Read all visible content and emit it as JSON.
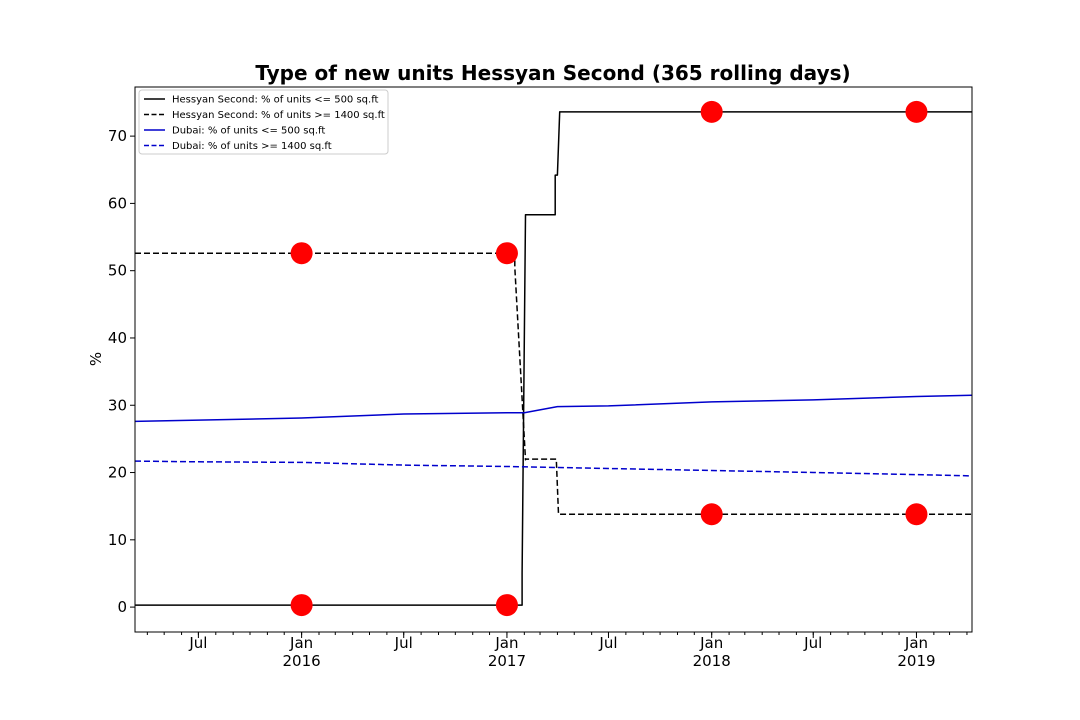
{
  "chart_data": {
    "type": "line",
    "title": "Type of new units Hessyan Second (365 rolling days)",
    "xlabel": "",
    "ylabel": "%",
    "xlim": [
      "2015-03-10",
      "2019-04-10"
    ],
    "ylim": [
      -3.7,
      77.3
    ],
    "grid": false,
    "legend_position": "top-left",
    "y_ticks": [
      0,
      10,
      20,
      30,
      40,
      50,
      60,
      70
    ],
    "x_ticks": [
      {
        "date": "2015-07-01",
        "label": "Jul",
        "sublabel": ""
      },
      {
        "date": "2016-01-01",
        "label": "Jan",
        "sublabel": "2016"
      },
      {
        "date": "2016-07-01",
        "label": "Jul",
        "sublabel": ""
      },
      {
        "date": "2017-01-01",
        "label": "Jan",
        "sublabel": "2017"
      },
      {
        "date": "2017-07-01",
        "label": "Jul",
        "sublabel": ""
      },
      {
        "date": "2018-01-01",
        "label": "Jan",
        "sublabel": "2018"
      },
      {
        "date": "2018-07-01",
        "label": "Jul",
        "sublabel": ""
      },
      {
        "date": "2019-01-01",
        "label": "Jan",
        "sublabel": "2019"
      }
    ],
    "series": [
      {
        "name": "Hessyan Second: % of units <= 500 sq.ft",
        "color": "#000000",
        "dash": "solid",
        "x": [
          "2015-03-10",
          "2017-01-28",
          "2017-01-28",
          "2017-02-03",
          "2017-02-03",
          "2017-03-28",
          "2017-03-28",
          "2017-04-01",
          "2017-04-05",
          "2019-04-10"
        ],
        "y": [
          0.3,
          0.3,
          5.0,
          58.3,
          58.3,
          58.3,
          64.2,
          64.2,
          73.6,
          73.6
        ]
      },
      {
        "name": "Hessyan Second: % of units >= 1400 sq.ft",
        "color": "#000000",
        "dash": "dashed",
        "x": [
          "2015-03-10",
          "2017-01-15",
          "2017-01-15",
          "2017-02-03",
          "2017-02-03",
          "2017-03-30",
          "2017-04-03",
          "2019-04-10"
        ],
        "y": [
          52.6,
          52.6,
          50.5,
          21.9,
          22.0,
          22.0,
          13.8,
          13.8
        ]
      },
      {
        "name": "Dubai: % of units <= 500 sq.ft",
        "color": "#0000cc",
        "dash": "solid",
        "x": [
          "2015-03-10",
          "2015-07-01",
          "2016-01-01",
          "2016-07-01",
          "2017-01-01",
          "2017-02-01",
          "2017-04-01",
          "2017-07-01",
          "2018-01-01",
          "2018-07-01",
          "2019-01-01",
          "2019-04-10"
        ],
        "y": [
          27.6,
          27.8,
          28.1,
          28.7,
          28.9,
          28.9,
          29.8,
          29.9,
          30.5,
          30.8,
          31.3,
          31.5
        ]
      },
      {
        "name": "Dubai: % of units >= 1400 sq.ft",
        "color": "#0000cc",
        "dash": "dashed",
        "x": [
          "2015-03-10",
          "2015-07-01",
          "2016-01-01",
          "2016-07-01",
          "2017-01-01",
          "2017-07-01",
          "2018-01-01",
          "2018-07-01",
          "2019-01-01",
          "2019-04-10"
        ],
        "y": [
          21.7,
          21.6,
          21.5,
          21.1,
          20.9,
          20.6,
          20.3,
          20.0,
          19.7,
          19.5
        ]
      }
    ],
    "markers": {
      "color": "#ff0000",
      "points": [
        {
          "x": "2016-01-01",
          "y": 52.6
        },
        {
          "x": "2016-01-01",
          "y": 0.3
        },
        {
          "x": "2017-01-01",
          "y": 52.6
        },
        {
          "x": "2017-01-01",
          "y": 0.3
        },
        {
          "x": "2018-01-01",
          "y": 73.6
        },
        {
          "x": "2018-01-01",
          "y": 13.8
        },
        {
          "x": "2019-01-01",
          "y": 73.6
        },
        {
          "x": "2019-01-01",
          "y": 13.8
        }
      ]
    }
  }
}
